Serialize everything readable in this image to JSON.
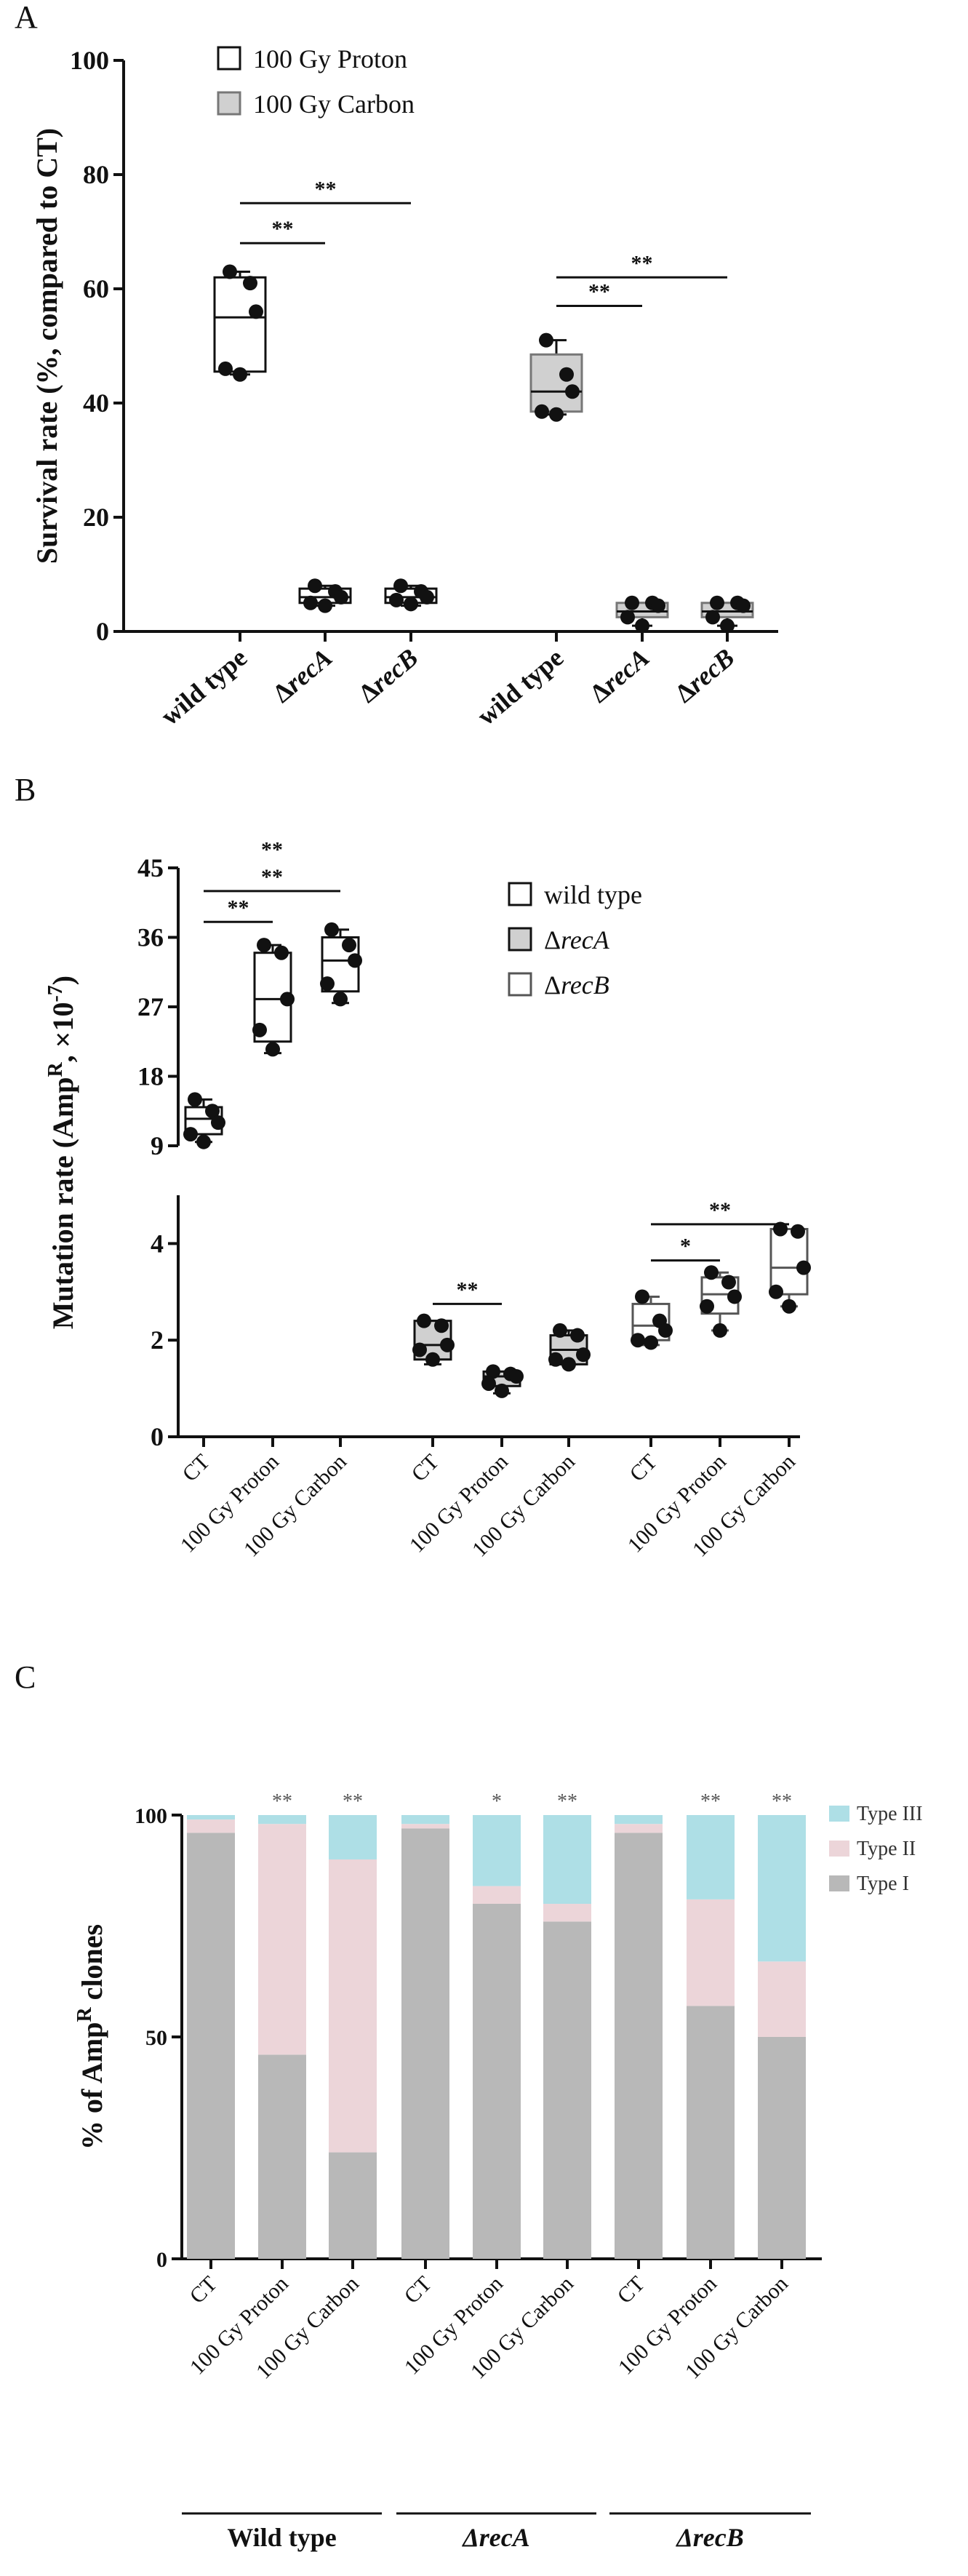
{
  "chart_data": [
    {
      "panel": "A",
      "type": "box",
      "ylabel": "Survival rate (%, compared to CT)",
      "ylim": [
        0,
        100
      ],
      "yticks": [
        "0",
        "20",
        "40",
        "60",
        "80",
        "100"
      ],
      "legend": [
        "100 Gy Proton",
        "100 Gy Carbon"
      ],
      "legend_placement": "top-left",
      "categories": [
        "wild type",
        "ΔrecA",
        "ΔrecB",
        "wild type",
        "ΔrecA",
        "ΔrecB"
      ],
      "groups": [
        {
          "series": "100 Gy Proton",
          "strain": "wild type",
          "min": 45,
          "q1": 45.5,
          "median": 55,
          "q3": 62,
          "max": 63,
          "points": [
            63,
            61,
            56,
            46,
            45
          ]
        },
        {
          "series": "100 Gy Proton",
          "strain": "ΔrecA",
          "min": 4.5,
          "q1": 5,
          "median": 6,
          "q3": 7.5,
          "max": 8,
          "points": [
            8,
            7,
            6,
            5,
            4.5
          ]
        },
        {
          "series": "100 Gy Proton",
          "strain": "ΔrecB",
          "min": 4.5,
          "q1": 5,
          "median": 6,
          "q3": 7.5,
          "max": 8,
          "points": [
            8,
            7,
            6,
            5.5,
            4.8
          ]
        },
        {
          "series": "100 Gy Carbon",
          "strain": "wild type",
          "min": 38,
          "q1": 38.5,
          "median": 42,
          "q3": 48.5,
          "max": 51,
          "points": [
            51,
            45,
            42,
            38.5,
            38
          ]
        },
        {
          "series": "100 Gy Carbon",
          "strain": "ΔrecA",
          "min": 1,
          "q1": 2.5,
          "median": 3.5,
          "q3": 5,
          "max": 5,
          "points": [
            5,
            5,
            4.5,
            2.5,
            1
          ]
        },
        {
          "series": "100 Gy Carbon",
          "strain": "ΔrecB",
          "min": 1,
          "q1": 2.5,
          "median": 3.5,
          "q3": 5,
          "max": 5,
          "points": [
            5,
            5,
            4.5,
            2.5,
            1
          ]
        }
      ],
      "annotations": [
        {
          "from": 0,
          "to": 1,
          "y": 68,
          "text": "**"
        },
        {
          "from": 0,
          "to": 2,
          "y": 75,
          "text": "**"
        },
        {
          "from": 3,
          "to": 4,
          "y": 57,
          "text": "**"
        },
        {
          "from": 3,
          "to": 5,
          "y": 62,
          "text": "**"
        }
      ]
    },
    {
      "panel": "B",
      "type": "box",
      "ylabel": "Mutation rate (Amp^R, ×10^-7)",
      "ylim_upper": [
        9,
        45
      ],
      "ylim_lower": [
        0,
        5
      ],
      "yticks_upper": [
        "9",
        "18",
        "27",
        "36",
        "45"
      ],
      "yticks_lower": [
        "0",
        "2",
        "4"
      ],
      "legend": [
        "wild type",
        "ΔrecA",
        "ΔrecB"
      ],
      "legend_placement": "top-right",
      "categories": [
        "CT",
        "100 Gy Proton",
        "100 Gy Carbon",
        "CT",
        "100 Gy Proton",
        "100 Gy Carbon",
        "CT",
        "100 Gy Proton",
        "100 Gy Carbon"
      ],
      "groups": [
        {
          "strain": "wild type",
          "condition": "CT",
          "min": 9.5,
          "q1": 10.5,
          "median": 12.5,
          "q3": 14,
          "max": 15,
          "points": [
            15,
            13.5,
            12,
            10.5,
            9.5
          ]
        },
        {
          "strain": "wild type",
          "condition": "100 Gy Proton",
          "min": 21,
          "q1": 22.5,
          "median": 28,
          "q3": 34,
          "max": 35,
          "points": [
            35,
            34,
            28,
            24,
            21.5
          ]
        },
        {
          "strain": "wild type",
          "condition": "100 Gy Carbon",
          "min": 27.5,
          "q1": 29,
          "median": 33,
          "q3": 36,
          "max": 37,
          "points": [
            37,
            35,
            33,
            30,
            28
          ]
        },
        {
          "strain": "ΔrecA",
          "condition": "CT",
          "min": 1.5,
          "q1": 1.6,
          "median": 1.9,
          "q3": 2.4,
          "max": 2.4,
          "points": [
            2.4,
            2.3,
            1.9,
            1.8,
            1.6
          ]
        },
        {
          "strain": "ΔrecA",
          "condition": "100 Gy Proton",
          "min": 0.9,
          "q1": 1.05,
          "median": 1.25,
          "q3": 1.35,
          "max": 1.35,
          "points": [
            1.35,
            1.3,
            1.25,
            1.1,
            0.95
          ]
        },
        {
          "strain": "ΔrecA",
          "condition": "100 Gy Carbon",
          "min": 1.5,
          "q1": 1.5,
          "median": 1.8,
          "q3": 2.1,
          "max": 2.2,
          "points": [
            2.2,
            2.1,
            1.7,
            1.6,
            1.5
          ]
        },
        {
          "strain": "ΔrecB",
          "condition": "CT",
          "min": 1.9,
          "q1": 2.0,
          "median": 2.3,
          "q3": 2.75,
          "max": 2.9,
          "points": [
            2.9,
            2.4,
            2.2,
            2.0,
            1.95
          ]
        },
        {
          "strain": "ΔrecB",
          "condition": "100 Gy Proton",
          "min": 2.2,
          "q1": 2.55,
          "median": 2.95,
          "q3": 3.3,
          "max": 3.4,
          "points": [
            3.4,
            3.2,
            2.9,
            2.7,
            2.2
          ]
        },
        {
          "strain": "ΔrecB",
          "condition": "100 Gy Carbon",
          "min": 2.7,
          "q1": 2.95,
          "median": 3.5,
          "q3": 4.3,
          "max": 4.3,
          "points": [
            4.3,
            4.25,
            3.5,
            3.0,
            2.7
          ]
        }
      ],
      "annotations": [
        {
          "from": 0,
          "to": 1,
          "y": 38,
          "axis": "upper",
          "text": "**"
        },
        {
          "from": 0,
          "to": 2,
          "y": 42,
          "axis": "upper",
          "text": "**"
        },
        {
          "from": 0,
          "to": 2,
          "y": 45.5,
          "axis": "upper",
          "text": "**"
        },
        {
          "from": 3,
          "to": 4,
          "y": 2.75,
          "axis": "lower",
          "text": "**"
        },
        {
          "from": 6,
          "to": 7,
          "y": 3.65,
          "axis": "lower",
          "text": "*"
        },
        {
          "from": 6,
          "to": 8,
          "y": 4.4,
          "axis": "lower",
          "text": "**"
        }
      ]
    },
    {
      "panel": "C",
      "type": "stacked_bar",
      "ylabel": "% of Amp^R clones",
      "ylim": [
        0,
        100
      ],
      "yticks": [
        "0",
        "50",
        "100"
      ],
      "legend_placement": "top-right",
      "categories": [
        "CT",
        "100 Gy Proton",
        "100 Gy Carbon",
        "CT",
        "100 Gy Proton",
        "100 Gy Carbon",
        "CT",
        "100 Gy Proton",
        "100 Gy Carbon"
      ],
      "category_groups": [
        {
          "name": "Wild type",
          "span": [
            0,
            2
          ]
        },
        {
          "name": "ΔrecA",
          "span": [
            3,
            5
          ]
        },
        {
          "name": "ΔrecB",
          "span": [
            6,
            8
          ]
        }
      ],
      "series": [
        {
          "name": "Type I",
          "color": "#b8b8b8",
          "values": [
            96,
            46,
            24,
            97,
            80,
            76,
            96,
            57,
            50
          ]
        },
        {
          "name": "Type II",
          "color": "#ecd5d9",
          "values": [
            3,
            52,
            66,
            1,
            4,
            4,
            2,
            24,
            17
          ]
        },
        {
          "name": "Type III",
          "color": "#aedfe6",
          "values": [
            1,
            2,
            10,
            2,
            16,
            20,
            2,
            19,
            33
          ]
        }
      ],
      "significance": [
        "",
        "**",
        "**",
        "",
        "*",
        "**",
        "",
        "**",
        "**"
      ]
    }
  ]
}
